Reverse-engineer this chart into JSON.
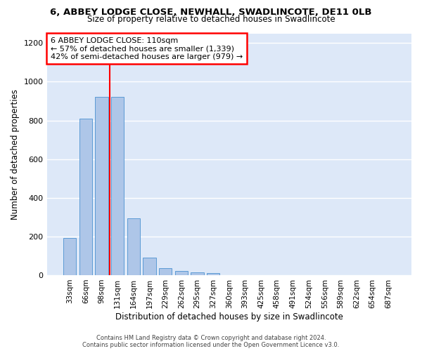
{
  "title_line1": "6, ABBEY LODGE CLOSE, NEWHALL, SWADLINCOTE, DE11 0LB",
  "title_line2": "Size of property relative to detached houses in Swadlincote",
  "xlabel": "Distribution of detached houses by size in Swadlincote",
  "ylabel": "Number of detached properties",
  "categories": [
    "33sqm",
    "66sqm",
    "98sqm",
    "131sqm",
    "164sqm",
    "197sqm",
    "229sqm",
    "262sqm",
    "295sqm",
    "327sqm",
    "360sqm",
    "393sqm",
    "425sqm",
    "458sqm",
    "491sqm",
    "524sqm",
    "556sqm",
    "589sqm",
    "622sqm",
    "654sqm",
    "687sqm"
  ],
  "bar_values": [
    192,
    810,
    922,
    922,
    295,
    90,
    35,
    20,
    15,
    10,
    0,
    0,
    0,
    0,
    0,
    0,
    0,
    0,
    0,
    0,
    0
  ],
  "bar_color": "#aec6e8",
  "bar_edge_color": "#5b9bd5",
  "annotation_text_line1": "6 ABBEY LODGE CLOSE: 110sqm",
  "annotation_text_line2": "← 57% of detached houses are smaller (1,339)",
  "annotation_text_line3": "42% of semi-detached houses are larger (979) →",
  "annotation_box_color": "white",
  "annotation_box_edge_color": "red",
  "vline_color": "red",
  "vline_x": 2.5,
  "ylim": [
    0,
    1250
  ],
  "yticks": [
    0,
    200,
    400,
    600,
    800,
    1000,
    1200
  ],
  "background_color": "#dde8f8",
  "grid_color": "white",
  "footer_line1": "Contains HM Land Registry data © Crown copyright and database right 2024.",
  "footer_line2": "Contains public sector information licensed under the Open Government Licence v3.0."
}
